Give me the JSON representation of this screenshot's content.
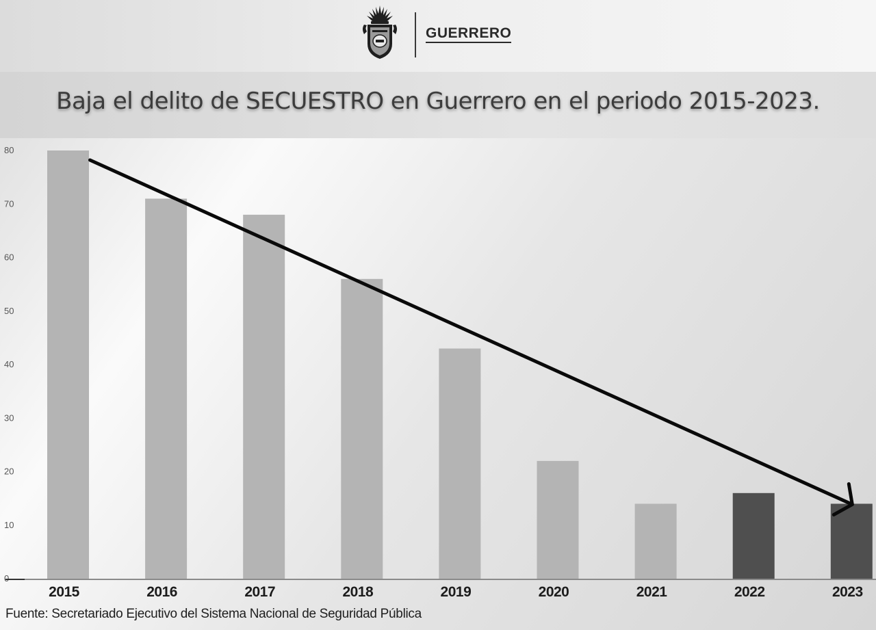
{
  "header": {
    "brand": "GUERRERO",
    "seal_icon": "guerrero-state-seal-icon"
  },
  "title": "Baja el delito de SECUESTRO en Guerrero en el periodo 2015-2023.",
  "source": "Fuente: Secretariado Ejecutivo del Sistema Nacional de Seguridad Pública",
  "chart_data": {
    "type": "bar",
    "title": "Baja el delito de SECUESTRO en Guerrero en el periodo 2015-2023.",
    "xlabel": "",
    "ylabel": "",
    "categories": [
      "2015",
      "2016",
      "2017",
      "2018",
      "2019",
      "2020",
      "2021",
      "2022",
      "2023"
    ],
    "values": [
      80,
      71,
      68,
      56,
      43,
      22,
      14,
      16,
      14
    ],
    "ylim": [
      0,
      80
    ],
    "yticks": [
      0,
      10,
      20,
      30,
      40,
      50,
      60,
      70,
      80
    ],
    "grid": false,
    "bar_colors": [
      "#b4b4b4",
      "#b4b4b4",
      "#b4b4b4",
      "#b4b4b4",
      "#b4b4b4",
      "#b4b4b4",
      "#b4b4b4",
      "#4f4f4f",
      "#4f4f4f"
    ],
    "annotation": "trend-arrow-down-icon"
  }
}
